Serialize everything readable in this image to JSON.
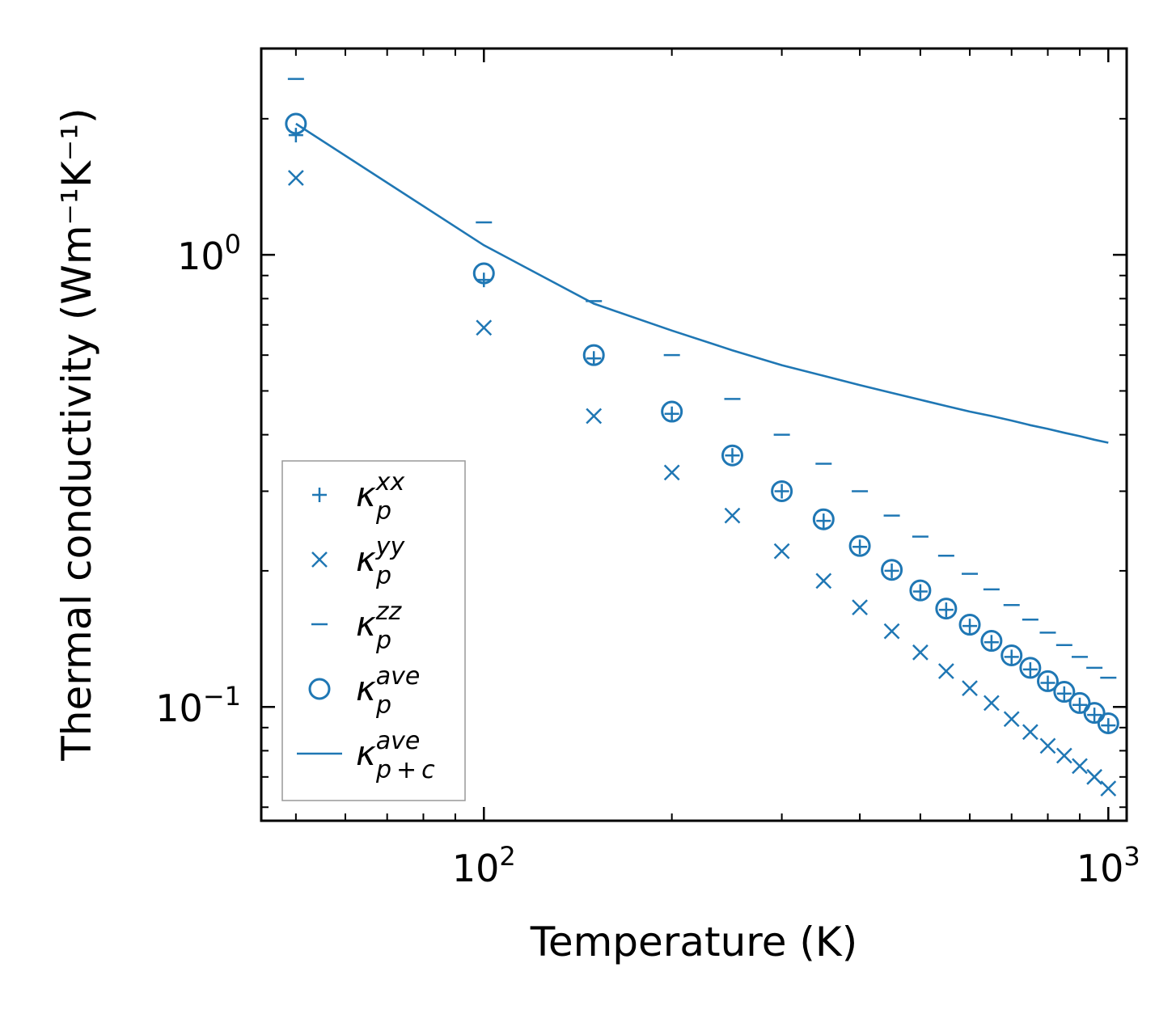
{
  "colors": {
    "series": "#1f77b4",
    "axis": "#000000",
    "legend_border": "#999999"
  },
  "chart_data": {
    "type": "scatter",
    "title": "",
    "xlabel": "Temperature (K)",
    "ylabel": "Thermal conductivity (Wm⁻¹K⁻¹)",
    "xscale": "log",
    "yscale": "log",
    "xlim": [
      44,
      1070
    ],
    "ylim": [
      0.056,
      2.86
    ],
    "x_major_ticks": [
      100,
      1000
    ],
    "x_tick_labels": [
      "10",
      "10"
    ],
    "x_tick_exponents": [
      "2",
      "3"
    ],
    "y_major_ticks": [
      0.1,
      1
    ],
    "y_tick_labels": [
      "10",
      "10"
    ],
    "y_tick_exponents": [
      "−1",
      "0"
    ],
    "legend_position": "lower-left",
    "x": [
      50,
      100,
      150,
      200,
      250,
      300,
      350,
      400,
      450,
      500,
      550,
      600,
      650,
      700,
      750,
      800,
      850,
      900,
      950,
      1000
    ],
    "series": [
      {
        "name": "xx",
        "label_sup": "xx",
        "label_sub": "p",
        "marker": "plus",
        "values": [
          1.84,
          0.88,
          0.59,
          0.445,
          0.36,
          0.3,
          0.258,
          0.226,
          0.2,
          0.18,
          0.164,
          0.151,
          0.139,
          0.129,
          0.121,
          0.113,
          0.107,
          0.101,
          0.096,
          0.091
        ]
      },
      {
        "name": "yy",
        "label_sup": "yy",
        "label_sub": "p",
        "marker": "x",
        "values": [
          1.48,
          0.69,
          0.44,
          0.33,
          0.265,
          0.221,
          0.19,
          0.166,
          0.147,
          0.132,
          0.12,
          0.11,
          0.102,
          0.094,
          0.088,
          0.082,
          0.078,
          0.074,
          0.07,
          0.066
        ]
      },
      {
        "name": "zz",
        "label_sup": "zz",
        "label_sub": "p",
        "marker": "hline",
        "values": [
          2.45,
          1.18,
          0.79,
          0.6,
          0.48,
          0.4,
          0.345,
          0.3,
          0.265,
          0.238,
          0.216,
          0.197,
          0.182,
          0.168,
          0.156,
          0.146,
          0.137,
          0.129,
          0.122,
          0.116
        ]
      },
      {
        "name": "ave",
        "label_sup": "ave",
        "label_sub": "p",
        "marker": "circle",
        "values": [
          1.95,
          0.91,
          0.6,
          0.45,
          0.36,
          0.3,
          0.26,
          0.227,
          0.201,
          0.181,
          0.165,
          0.152,
          0.14,
          0.13,
          0.122,
          0.114,
          0.108,
          0.102,
          0.097,
          0.092
        ]
      },
      {
        "name": "ave_p+c",
        "label_sup": "ave",
        "label_sub": "p + c",
        "marker": "line",
        "values": [
          1.95,
          1.05,
          0.78,
          0.68,
          0.615,
          0.57,
          0.54,
          0.515,
          0.495,
          0.478,
          0.463,
          0.45,
          0.44,
          0.43,
          0.42,
          0.412,
          0.404,
          0.397,
          0.39,
          0.384
        ]
      }
    ],
    "legend_symbol": "κ"
  }
}
